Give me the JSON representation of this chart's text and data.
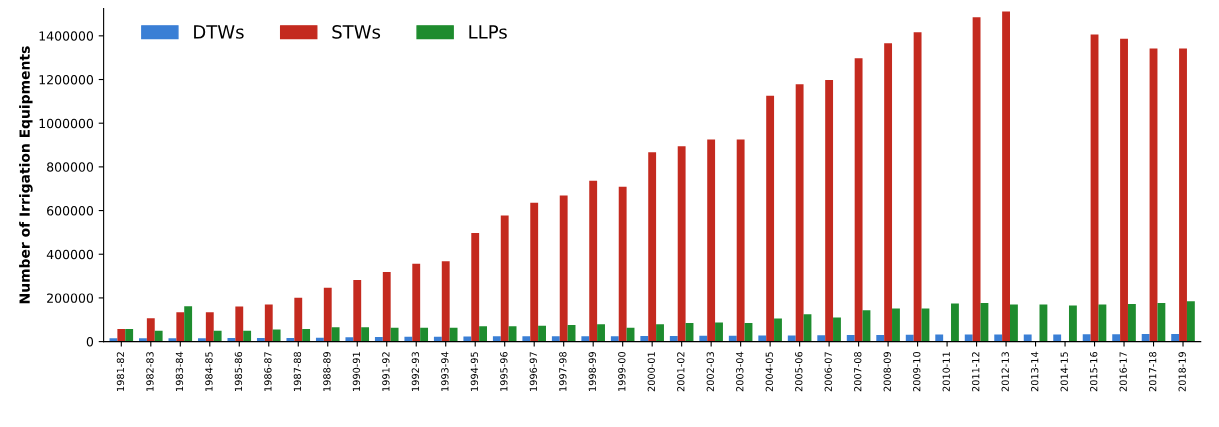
{
  "chart_data": {
    "type": "bar",
    "ylabel": "Number of Irrigation Equipments",
    "categories": [
      "1981-82",
      "1982-83",
      "1983-84",
      "1984-85",
      "1985-86",
      "1986-87",
      "1987-88",
      "1988-89",
      "1990-91",
      "1991-92",
      "1992-93",
      "1993-94",
      "1994-95",
      "1995-96",
      "1996-97",
      "1997-98",
      "1998-99",
      "1999-00",
      "2000-01",
      "2001-02",
      "2002-03",
      "2003-04",
      "2004-05",
      "2005-06",
      "2006-07",
      "2007-08",
      "2008-09",
      "2009-10",
      "2010-11",
      "2011-12",
      "2012-13",
      "2013-14",
      "2014-15",
      "2015-16",
      "2016-17",
      "2017-18",
      "2018-19"
    ],
    "series": [
      {
        "name": "DTWs",
        "color": "#3a7fd5",
        "values": [
          15000,
          15000,
          15000,
          15000,
          16000,
          16000,
          17000,
          18000,
          20000,
          21000,
          22000,
          22000,
          23000,
          24000,
          24000,
          25000,
          25000,
          25000,
          26000,
          26000,
          27000,
          27000,
          28000,
          28000,
          29000,
          30000,
          30000,
          31000,
          32000,
          32000,
          33000,
          33000,
          33000,
          34000,
          34000,
          35000,
          35000
        ]
      },
      {
        "name": "STWs",
        "color": "#c42a1f",
        "values": [
          58000,
          107000,
          134000,
          134000,
          161000,
          170000,
          201000,
          246000,
          282000,
          319000,
          356000,
          368000,
          497000,
          577000,
          636000,
          669000,
          736000,
          709000,
          867000,
          895000,
          925000,
          925000,
          1126000,
          1178000,
          1198000,
          1297000,
          1366000,
          1417000,
          null,
          1485000,
          1511000,
          null,
          null,
          1406000,
          1387000,
          1342000,
          1342000
        ]
      },
      {
        "name": "LLPs",
        "color": "#1e8c2e",
        "values": [
          58000,
          50000,
          162000,
          50000,
          50000,
          55000,
          58000,
          66000,
          66000,
          63000,
          63000,
          63000,
          70000,
          70000,
          73000,
          76000,
          80000,
          63000,
          80000,
          85000,
          88000,
          85000,
          106000,
          125000,
          110000,
          144000,
          151000,
          151000,
          174000,
          177000,
          170000,
          170000,
          165000,
          170000,
          172000,
          177000,
          185000
        ]
      }
    ],
    "ylim": [
      0,
      1525000
    ],
    "yticks": [
      0,
      200000,
      400000,
      600000,
      800000,
      1000000,
      1200000,
      1400000
    ],
    "legend": "top left",
    "grid": false
  }
}
